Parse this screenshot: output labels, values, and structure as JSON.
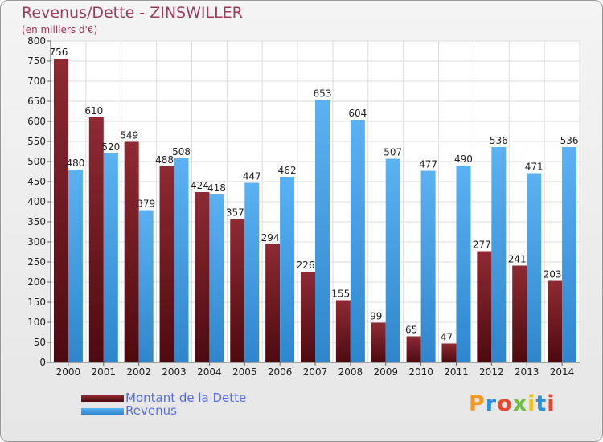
{
  "chart_data": {
    "type": "bar",
    "title": "Revenus/Dette - ZINSWILLER",
    "subtitle": "(en milliers d'€)",
    "categories": [
      "2000",
      "2001",
      "2002",
      "2003",
      "2004",
      "2005",
      "2006",
      "2007",
      "2008",
      "2009",
      "2010",
      "2011",
      "2012",
      "2013",
      "2014"
    ],
    "series": [
      {
        "name": "Montant de la Dette",
        "color": "#7a1c24",
        "values": [
          756,
          610,
          549,
          488,
          424,
          357,
          294,
          226,
          155,
          99,
          65,
          47,
          277,
          241,
          203
        ]
      },
      {
        "name": "Revenus",
        "color": "#4aa3e6",
        "values": [
          480,
          520,
          379,
          508,
          418,
          447,
          462,
          653,
          604,
          507,
          477,
          490,
          536,
          471,
          536
        ]
      }
    ],
    "ylim": [
      0,
      800
    ],
    "yticks": [
      0,
      50,
      100,
      150,
      200,
      250,
      300,
      350,
      400,
      450,
      500,
      550,
      600,
      650,
      700,
      750,
      800
    ],
    "grid": true,
    "legend_position": "bottom-left",
    "logo_text": "Proxiti"
  }
}
